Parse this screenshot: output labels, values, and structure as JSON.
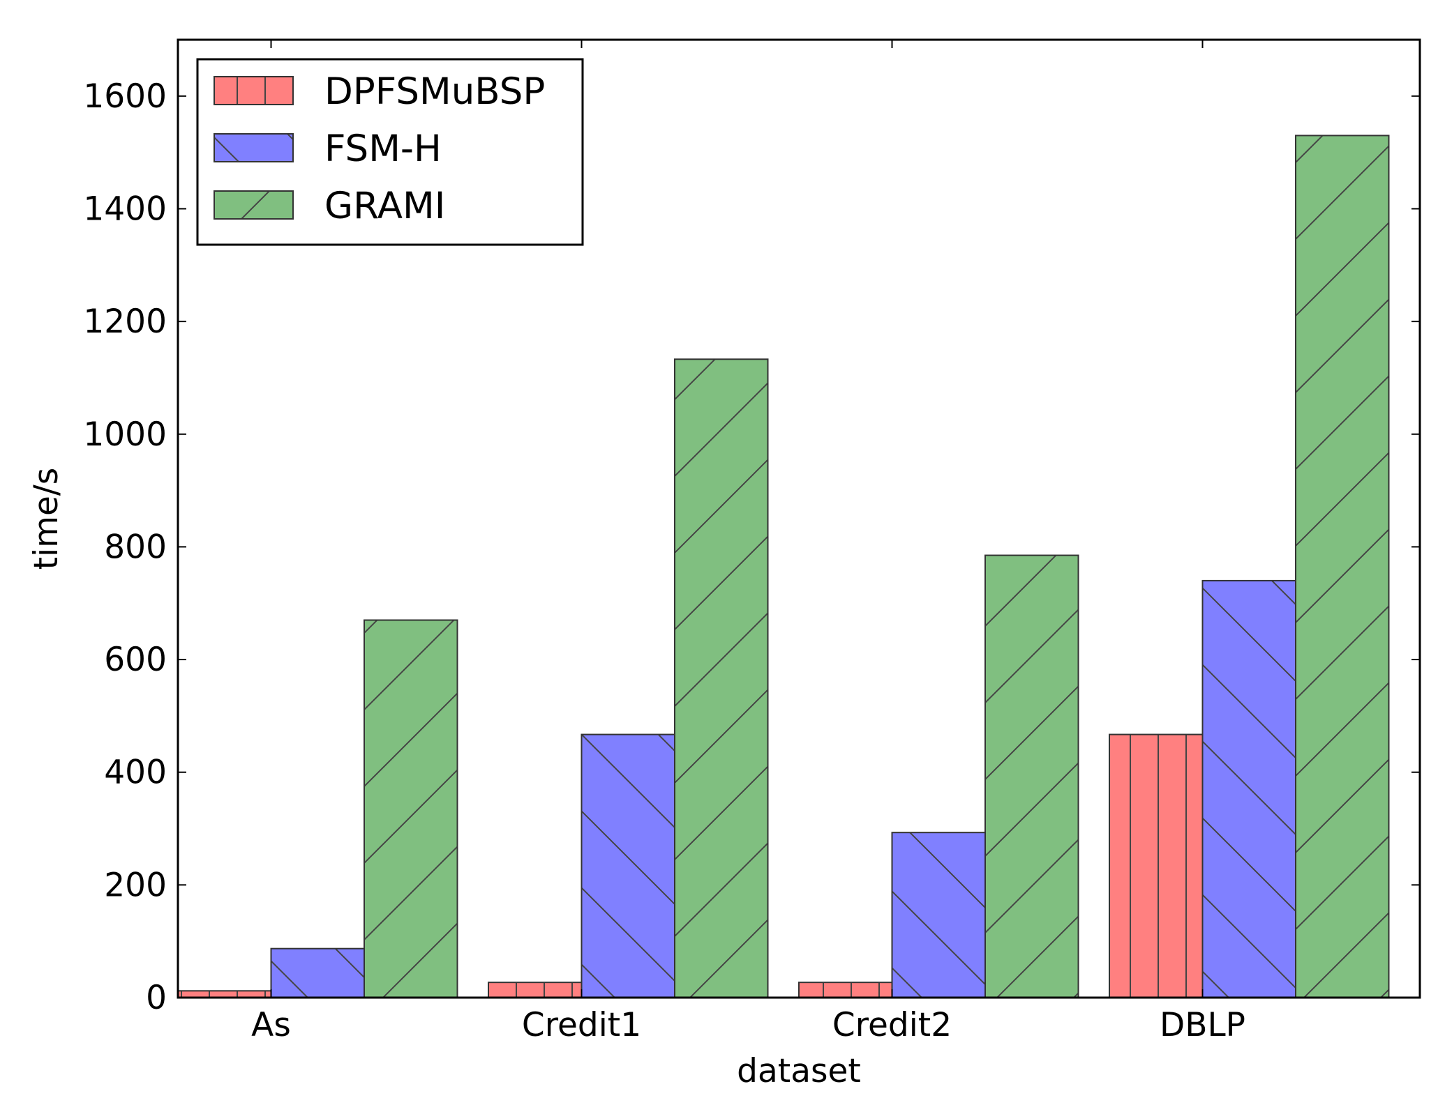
{
  "chart_data": {
    "type": "bar",
    "xlabel": "dataset",
    "ylabel": "time/s",
    "ylim": [
      0,
      1700
    ],
    "yticks": [
      0,
      200,
      400,
      600,
      800,
      1000,
      1200,
      1400,
      1600
    ],
    "grid": false,
    "legend_position": "top-left",
    "categories": [
      "As",
      "Credit1",
      "Credit2",
      "DBLP"
    ],
    "series": [
      {
        "name": "DPFSMuBSP",
        "color": "#ff8080",
        "hatch": "vertical",
        "values": [
          12,
          27,
          27,
          467
        ]
      },
      {
        "name": "FSM-H",
        "color": "#8080ff",
        "hatch": "backslash",
        "values": [
          87,
          467,
          293,
          740
        ]
      },
      {
        "name": "GRAMI",
        "color": "#80bf80",
        "hatch": "slash",
        "values": [
          670,
          1133,
          785,
          1530
        ]
      }
    ]
  }
}
